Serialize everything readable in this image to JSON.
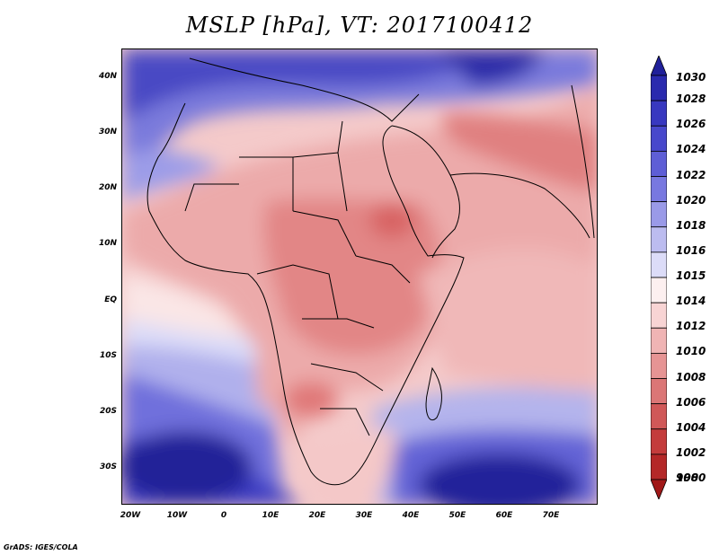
{
  "title": "MSLP [hPa], VT: 2017100412",
  "credit": "GrADS: IGES/COLA",
  "latitude_labels": [
    "40N",
    "30N",
    "20N",
    "10N",
    "EQ",
    "10S",
    "20S",
    "30S"
  ],
  "longitude_labels": [
    "20W",
    "10W",
    "0",
    "10E",
    "20E",
    "30E",
    "40E",
    "50E",
    "60E",
    "70E"
  ],
  "colorbar": {
    "levels": [
      "1030",
      "1028",
      "1026",
      "1024",
      "1022",
      "1020",
      "1018",
      "1016",
      "1015",
      "1014",
      "1012",
      "1010",
      "1008",
      "1006",
      "1004",
      "1002",
      "1000",
      "998"
    ],
    "colors": [
      "#20209a",
      "#2a2aae",
      "#3838c0",
      "#4848cc",
      "#5e5ed6",
      "#7878e0",
      "#9a9ae8",
      "#bcbcf0",
      "#dcdcf8",
      "#fdf0f0",
      "#f8d4d4",
      "#f0b4b4",
      "#e69494",
      "#db7676",
      "#d05858",
      "#c43c3c",
      "#b42828",
      "#a01818"
    ]
  },
  "map": {
    "land_colors": {
      "sahara_low": "#ecaaaa",
      "east_high": "#e07c7c",
      "ocean_high": "#3030b8",
      "subtrop_ridge": "#b8b8ee",
      "mid_ocean": "#fae4e4"
    }
  }
}
